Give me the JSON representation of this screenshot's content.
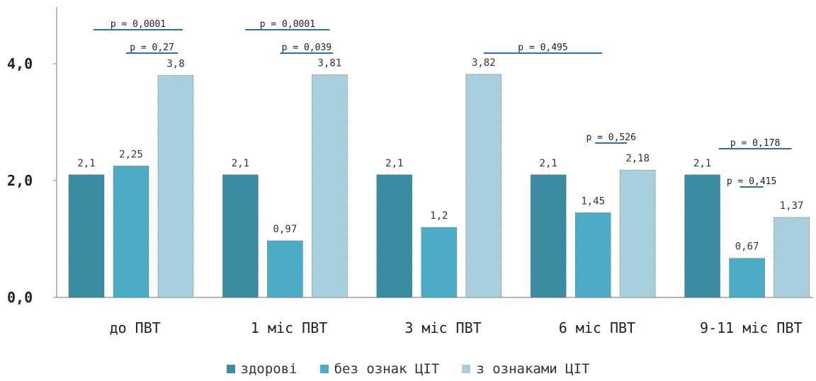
{
  "chart_data": {
    "type": "bar",
    "categories": [
      "до ПВТ",
      "1 міс ПВТ",
      "3 міс ПВТ",
      "6 міс ПВТ",
      "9-11 міс ПВТ"
    ],
    "series": [
      {
        "name": "здорові",
        "color": "#3a8ca2",
        "values": [
          2.1,
          2.1,
          2.1,
          2.1,
          2.1
        ],
        "labels": [
          "2,1",
          "2,1",
          "2,1",
          "2,1",
          "2,1"
        ]
      },
      {
        "name": "без ознак ЦІТ",
        "color": "#4bacc6",
        "values": [
          2.25,
          0.97,
          1.2,
          1.45,
          0.67
        ],
        "labels": [
          "2,25",
          "0,97",
          "1,2",
          "1,45",
          "0,67"
        ]
      },
      {
        "name": "з ознаками ЦІТ",
        "color": "#a8cfdd",
        "values": [
          3.8,
          3.81,
          3.82,
          2.18,
          1.37
        ],
        "labels": [
          "3,8",
          "3,81",
          "3,82",
          "2,18",
          "1,37"
        ]
      }
    ],
    "yticks": [
      "0,0",
      "2,0",
      "4,0"
    ],
    "ytick_values": [
      0,
      2,
      4
    ],
    "ylim": [
      0,
      5
    ],
    "legend_position": "bottom",
    "annotations": [
      {
        "text": "p = 0,0001",
        "category": 0,
        "from_series": 0,
        "to_series": 2
      },
      {
        "text": "p = 0,27",
        "category": 0,
        "from_series": 1,
        "to_series": 2
      },
      {
        "text": "p = 0,0001",
        "category": 1,
        "from_series": 0,
        "to_series": 2
      },
      {
        "text": "p = 0,039",
        "category": 1,
        "from_series": 1,
        "to_series": 2
      },
      {
        "text": "p = 0,495",
        "category": "2-3",
        "from_series": 2,
        "to_series": 2
      },
      {
        "text": "p = 0,526",
        "category": 3,
        "from_series": 1,
        "to_series": 2
      },
      {
        "text": "p = 0,178",
        "category": 4,
        "from_series": 0,
        "to_series": 2
      },
      {
        "text": "p = 0,415",
        "category": 4,
        "from_series": 1,
        "to_series": 2
      }
    ]
  }
}
